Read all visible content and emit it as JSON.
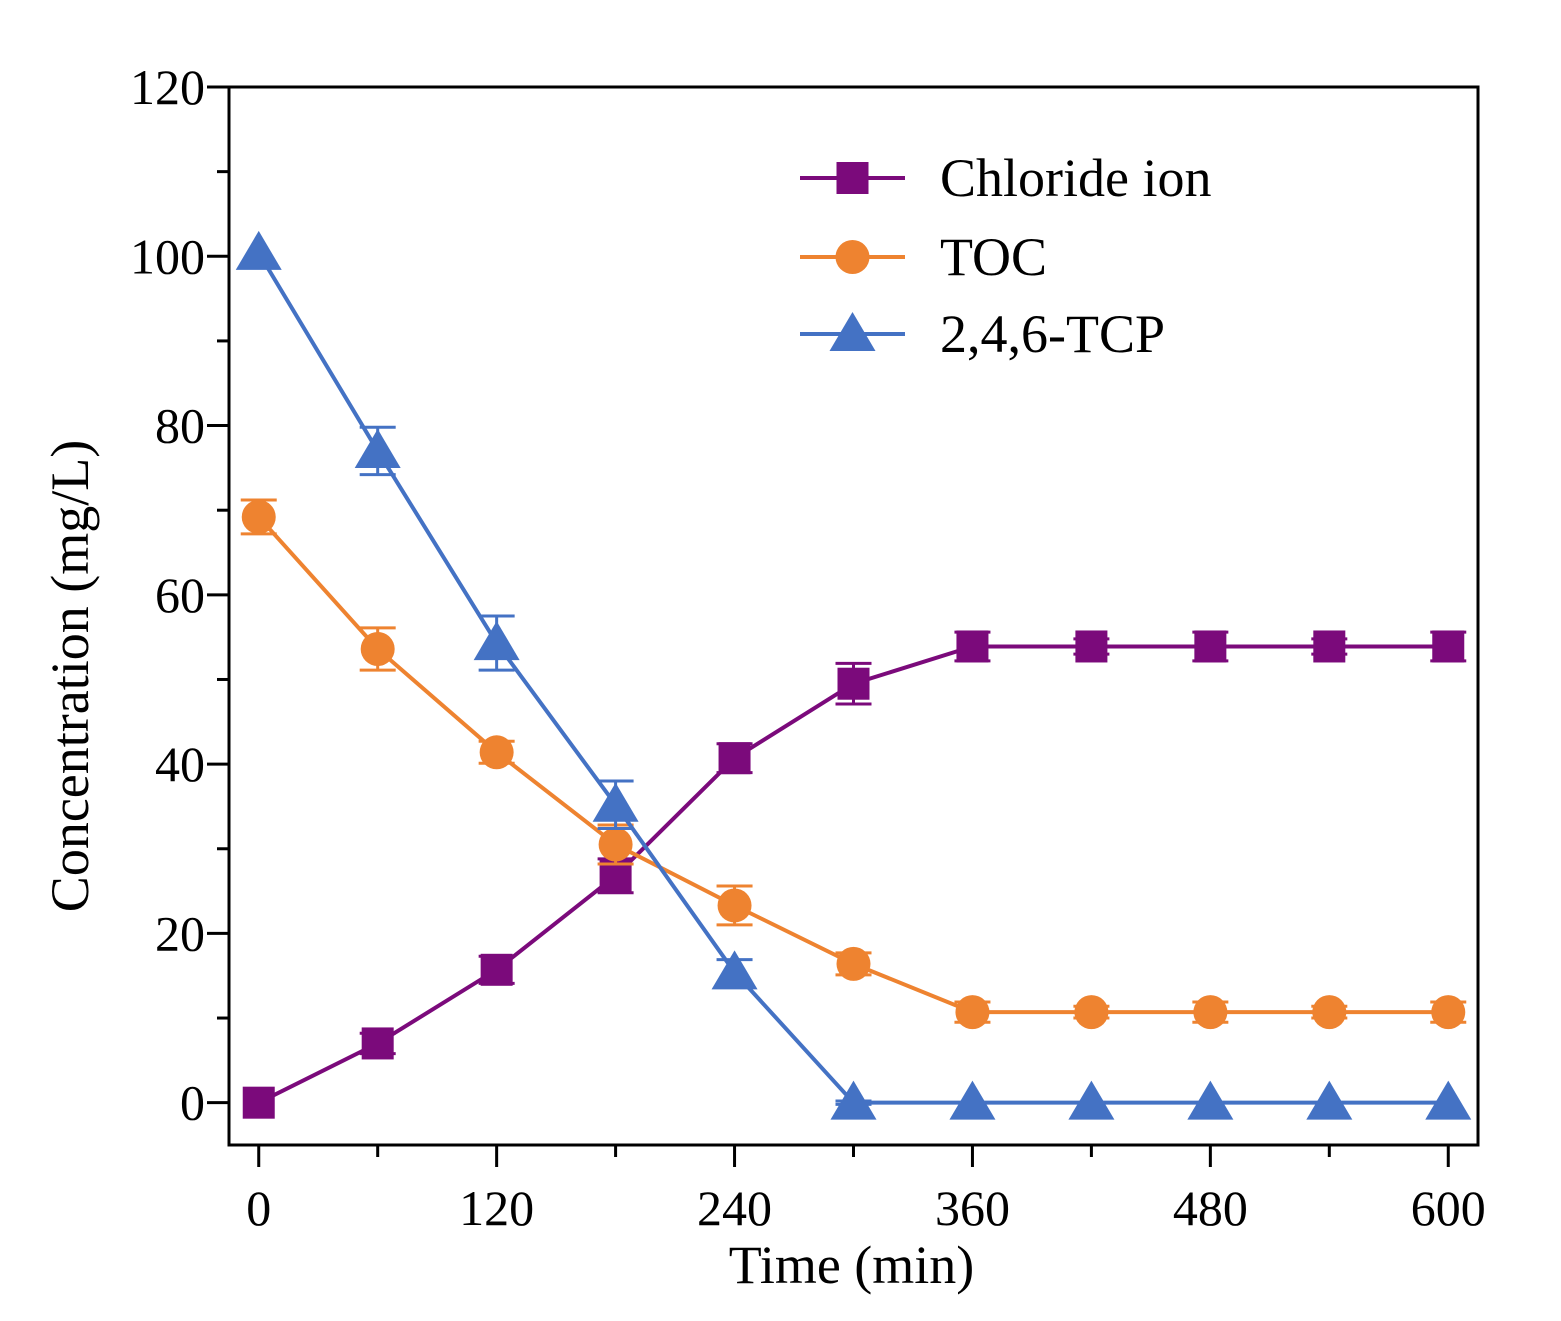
{
  "chart_data": {
    "type": "line",
    "title": "",
    "xlabel": "Time (min)",
    "ylabel": "Concentration (mg/L)",
    "xlim": [
      -15,
      615
    ],
    "ylim": [
      -5,
      120
    ],
    "x_ticks": [
      0,
      120,
      240,
      360,
      480,
      600
    ],
    "x_minor_ticks": [
      60,
      180,
      300,
      420,
      540
    ],
    "y_ticks": [
      0,
      20,
      40,
      60,
      80,
      100,
      120
    ],
    "y_minor_ticks": [
      10,
      30,
      50,
      70,
      90,
      110
    ],
    "legend_position": "top-right",
    "x": [
      0,
      60,
      120,
      180,
      240,
      300,
      360,
      420,
      480,
      540,
      600
    ],
    "series": [
      {
        "name": "Chloride ion",
        "color": "#7b0a7b",
        "marker": "square",
        "values": [
          0,
          7,
          15.7,
          26.8,
          40.7,
          49.5,
          53.9,
          53.9,
          53.9,
          53.9,
          53.9
        ],
        "errors": [
          0,
          1.2,
          1.6,
          2.0,
          1.7,
          2.4,
          1.7,
          0.9,
          1.7,
          0.9,
          1.7
        ]
      },
      {
        "name": "TOC",
        "color": "#ee8330",
        "marker": "circle",
        "values": [
          69.2,
          53.6,
          41.4,
          30.5,
          23.3,
          16.4,
          10.7,
          10.7,
          10.7,
          10.7,
          10.7
        ],
        "errors": [
          2.0,
          2.5,
          1.3,
          2.3,
          2.3,
          1.3,
          1.2,
          0.7,
          1.2,
          0.7,
          1.2
        ]
      },
      {
        "name": "2,4,6-TCP",
        "color": "#4472c4",
        "marker": "triangle",
        "values": [
          100.4,
          77.0,
          54.3,
          35.2,
          15.4,
          0,
          0,
          0,
          0,
          0,
          0
        ],
        "errors": [
          0,
          2.8,
          3.2,
          2.8,
          1.5,
          0.2,
          0,
          0,
          0,
          0,
          0
        ]
      }
    ]
  }
}
